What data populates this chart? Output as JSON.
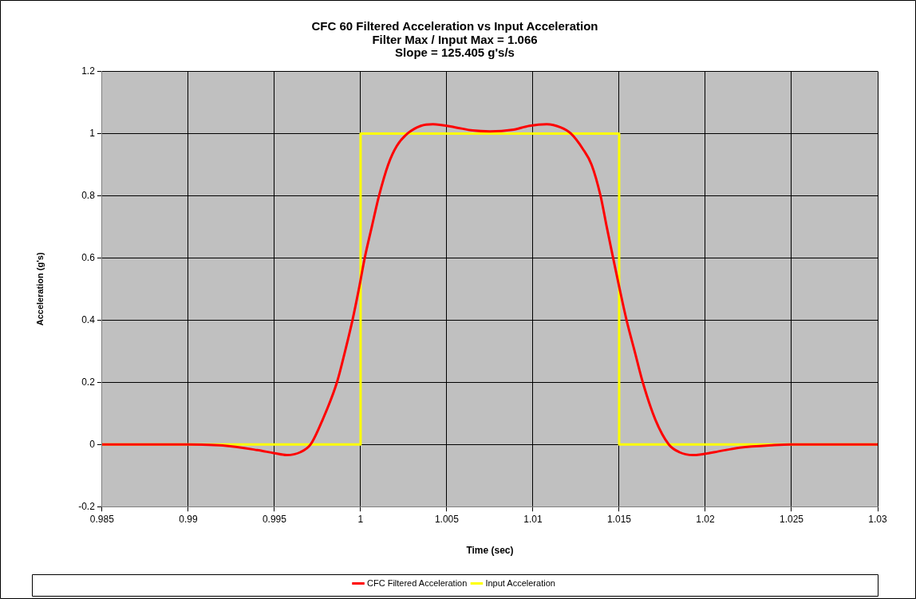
{
  "chart_data": {
    "type": "line",
    "title": "CFC 60 Filtered Acceleration vs Input Acceleration\nFilter Max / Input Max = 1.066\nSlope = 125.405 g's/s",
    "xlabel": "Time (sec)",
    "ylabel": "Acceleration (g's)",
    "xlim": [
      0.985,
      1.03
    ],
    "xticks": [
      0.985,
      0.99,
      0.995,
      1,
      1.005,
      1.01,
      1.015,
      1.02,
      1.025,
      1.03
    ],
    "ylim": [
      -0.2,
      1.2
    ],
    "yticks": [
      -0.2,
      0,
      0.2,
      0.4,
      0.6,
      0.8,
      1,
      1.2
    ],
    "grid": true,
    "legend": "bottom",
    "marker": "none",
    "line_style": "solid",
    "series": [
      {
        "name": "CFC Filtered Acceleration",
        "color": "#ff0000",
        "x": [
          0.985,
          0.99,
          0.992,
          0.994,
          0.995,
          0.9957,
          0.9965,
          0.9971,
          0.9978,
          0.99863,
          0.9991,
          0.99953,
          0.9999,
          1.00024,
          1.00065,
          1.00107,
          1.0016,
          1.0021,
          1.00272,
          1.0035,
          1.0042,
          1.0055,
          1.0065,
          1.0075,
          1.0088,
          1.0098,
          1.0108,
          1.0116,
          1.0122,
          1.0129,
          1.0134,
          1.01392,
          1.01428,
          1.01465,
          1.01503,
          1.01543,
          1.0159,
          1.01637,
          1.0171,
          1.01788,
          1.0185,
          1.0193,
          1.0205,
          1.022,
          1.024,
          1.025,
          1.03
        ],
        "values": [
          0,
          0,
          -0.003,
          -0.018,
          -0.028,
          -0.034,
          -0.025,
          0,
          0.08,
          0.2,
          0.3,
          0.4,
          0.5,
          0.6,
          0.7,
          0.8,
          0.9,
          0.96,
          1.0,
          1.025,
          1.03,
          1.02,
          1.01,
          1.007,
          1.012,
          1.025,
          1.03,
          1.02,
          1.0,
          0.95,
          0.9,
          0.8,
          0.7,
          0.6,
          0.5,
          0.4,
          0.3,
          0.2,
          0.08,
          0,
          -0.025,
          -0.034,
          -0.025,
          -0.01,
          -0.002,
          0,
          0
        ]
      },
      {
        "name": "Input Acceleration",
        "color": "#ffff00",
        "type": "step",
        "x": [
          0.985,
          1,
          1,
          1.015,
          1.015,
          1.03
        ],
        "values": [
          0,
          0,
          1,
          1,
          0,
          0
        ]
      }
    ]
  }
}
